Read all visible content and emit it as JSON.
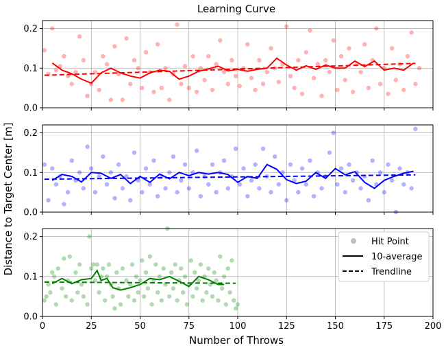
{
  "figure": {
    "title": "Learning Curve",
    "xlabel": "Number of Throws",
    "ylabel": "Distance to Target Center [m]"
  },
  "legend": {
    "placement": "top-right of bottom panel",
    "entries": [
      {
        "label": "Hit Point",
        "kind": "point"
      },
      {
        "label": "10-average",
        "kind": "solid"
      },
      {
        "label": "Trendline",
        "kind": "dashed"
      }
    ]
  },
  "chart_data": [
    {
      "type": "scatter",
      "panel": "top",
      "color": "#ff0000",
      "xlim": [
        0,
        200
      ],
      "ylim": [
        0,
        0.22
      ],
      "xticks": [
        0,
        25,
        50,
        75,
        100,
        125,
        150,
        175,
        200
      ],
      "yticks": [
        0.0,
        0.1,
        0.2
      ],
      "grid": true,
      "series": [
        {
          "role": "hit_points",
          "x": [
            1,
            3,
            5,
            7,
            9,
            11,
            13,
            15,
            17,
            19,
            21,
            23,
            25,
            27,
            29,
            31,
            33,
            35,
            37,
            39,
            41,
            43,
            45,
            47,
            49,
            51,
            53,
            55,
            57,
            59,
            61,
            63,
            65,
            67,
            69,
            71,
            73,
            75,
            77,
            79,
            81,
            83,
            85,
            87,
            89,
            91,
            93,
            95,
            97,
            99,
            101,
            103,
            105,
            107,
            109,
            111,
            113,
            115,
            117,
            119,
            121,
            123,
            125,
            127,
            129,
            131,
            133,
            135,
            137,
            139,
            141,
            143,
            145,
            147,
            149,
            151,
            153,
            155,
            157,
            159,
            161,
            163,
            165,
            167,
            169,
            171,
            173,
            175,
            177,
            179,
            181,
            183,
            185,
            187,
            189,
            191,
            193
          ],
          "y": [
            0.145,
            0.085,
            0.2,
            0.095,
            0.105,
            0.13,
            0.08,
            0.06,
            0.09,
            0.18,
            0.12,
            0.03,
            0.06,
            0.09,
            0.045,
            0.13,
            0.11,
            0.02,
            0.155,
            0.085,
            0.02,
            0.175,
            0.06,
            0.12,
            0.1,
            0.05,
            0.14,
            0.09,
            0.04,
            0.16,
            0.05,
            0.1,
            0.02,
            0.085,
            0.21,
            0.06,
            0.105,
            0.05,
            0.13,
            0.04,
            0.1,
            0.07,
            0.13,
            0.045,
            0.11,
            0.17,
            0.09,
            0.06,
            0.12,
            0.08,
            0.055,
            0.1,
            0.16,
            0.075,
            0.045,
            0.12,
            0.06,
            0.09,
            0.15,
            0.1,
            0.065,
            0.11,
            0.205,
            0.08,
            0.05,
            0.12,
            0.035,
            0.14,
            0.195,
            0.075,
            0.11,
            0.03,
            0.12,
            0.09,
            0.17,
            0.045,
            0.13,
            0.07,
            0.15,
            0.04,
            0.11,
            0.09,
            0.16,
            0.05,
            0.12,
            0.2,
            0.06,
            0.1,
            0.035,
            0.15,
            0.07,
            0.11,
            0.045,
            0.13,
            0.19,
            0.06,
            0.1
          ]
        },
        {
          "role": "10_average",
          "x": [
            5,
            10,
            15,
            20,
            25,
            30,
            35,
            40,
            45,
            50,
            55,
            60,
            65,
            70,
            75,
            80,
            85,
            90,
            95,
            100,
            105,
            110,
            115,
            120,
            125,
            130,
            135,
            140,
            145,
            150,
            155,
            160,
            165,
            170,
            175,
            180,
            185,
            190
          ],
          "y": [
            0.113,
            0.095,
            0.086,
            0.072,
            0.062,
            0.088,
            0.1,
            0.088,
            0.08,
            0.075,
            0.088,
            0.095,
            0.092,
            0.072,
            0.08,
            0.092,
            0.098,
            0.105,
            0.093,
            0.097,
            0.092,
            0.097,
            0.1,
            0.125,
            0.108,
            0.095,
            0.106,
            0.097,
            0.108,
            0.1,
            0.1,
            0.118,
            0.104,
            0.118,
            0.095,
            0.1,
            0.095,
            0.113
          ]
        },
        {
          "role": "trendline",
          "x": [
            1,
            191
          ],
          "y": [
            0.082,
            0.112
          ]
        }
      ]
    },
    {
      "type": "scatter",
      "panel": "middle",
      "color": "#0000ff",
      "xlim": [
        0,
        200
      ],
      "ylim": [
        0,
        0.22
      ],
      "xticks": [
        0,
        25,
        50,
        75,
        100,
        125,
        150,
        175,
        200
      ],
      "yticks": [
        0.0,
        0.1,
        0.2
      ],
      "grid": true,
      "series": [
        {
          "role": "hit_points",
          "x": [
            1,
            3,
            5,
            7,
            9,
            11,
            13,
            15,
            17,
            19,
            21,
            23,
            25,
            27,
            29,
            31,
            33,
            35,
            37,
            39,
            41,
            43,
            45,
            47,
            49,
            51,
            53,
            55,
            57,
            59,
            61,
            63,
            65,
            67,
            69,
            71,
            73,
            75,
            77,
            79,
            81,
            83,
            85,
            87,
            89,
            91,
            93,
            95,
            97,
            99,
            101,
            103,
            105,
            107,
            109,
            111,
            113,
            115,
            117,
            119,
            121,
            123,
            125,
            127,
            129,
            131,
            133,
            135,
            137,
            139,
            141,
            143,
            145,
            147,
            149,
            151,
            153,
            155,
            157,
            159,
            161,
            163,
            165,
            167,
            169,
            171,
            173,
            175,
            177,
            179,
            181,
            183,
            185,
            187,
            189,
            191
          ],
          "y": [
            0.12,
            0.03,
            0.11,
            0.07,
            0.09,
            0.02,
            0.05,
            0.13,
            0.08,
            0.1,
            0.06,
            0.165,
            0.11,
            0.05,
            0.09,
            0.14,
            0.07,
            0.1,
            0.035,
            0.12,
            0.06,
            0.09,
            0.03,
            0.15,
            0.08,
            0.05,
            0.11,
            0.07,
            0.13,
            0.04,
            0.09,
            0.06,
            0.1,
            0.14,
            0.05,
            0.08,
            0.12,
            0.06,
            0.1,
            0.155,
            0.04,
            0.09,
            0.07,
            0.12,
            0.05,
            0.1,
            0.13,
            0.06,
            0.09,
            0.16,
            0.07,
            0.11,
            0.04,
            0.08,
            0.12,
            0.06,
            0.16,
            0.09,
            0.05,
            0.14,
            0.07,
            0.1,
            0.03,
            0.12,
            0.08,
            0.05,
            0.11,
            0.07,
            0.13,
            0.04,
            0.1,
            0.06,
            0.09,
            0.15,
            0.2,
            0.07,
            0.11,
            0.05,
            0.12,
            0.08,
            0.1,
            0.06,
            0.09,
            0.03,
            0.13,
            0.07,
            0.1,
            0.05,
            0.12,
            0.08,
            0.0,
            0.11,
            0.07,
            0.1,
            0.06,
            0.21
          ]
        },
        {
          "role": "10_average",
          "x": [
            5,
            10,
            15,
            20,
            25,
            30,
            35,
            40,
            45,
            50,
            55,
            60,
            65,
            70,
            75,
            80,
            85,
            90,
            95,
            100,
            105,
            110,
            115,
            120,
            125,
            130,
            135,
            140,
            145,
            150,
            155,
            160,
            165,
            170,
            175,
            180,
            185,
            190
          ],
          "y": [
            0.08,
            0.095,
            0.09,
            0.076,
            0.1,
            0.098,
            0.085,
            0.095,
            0.072,
            0.09,
            0.075,
            0.096,
            0.084,
            0.1,
            0.092,
            0.1,
            0.096,
            0.1,
            0.095,
            0.075,
            0.09,
            0.085,
            0.12,
            0.108,
            0.082,
            0.072,
            0.078,
            0.1,
            0.085,
            0.11,
            0.094,
            0.102,
            0.075,
            0.06,
            0.08,
            0.09,
            0.098,
            0.103
          ]
        },
        {
          "role": "trendline",
          "x": [
            1,
            191
          ],
          "y": [
            0.083,
            0.094
          ]
        }
      ]
    },
    {
      "type": "scatter",
      "panel": "bottom",
      "color": "#008000",
      "xlim": [
        0,
        200
      ],
      "ylim": [
        0,
        0.22
      ],
      "xticks": [
        0,
        25,
        50,
        75,
        100,
        125,
        150,
        175,
        200
      ],
      "xticklabels": [
        "0",
        "25",
        "50",
        "75",
        "100",
        "125",
        "150",
        "175",
        "200"
      ],
      "yticks": [
        0.0,
        0.1,
        0.2
      ],
      "grid": true,
      "series": [
        {
          "role": "hit_points",
          "x": [
            1,
            2,
            3,
            4,
            5,
            6,
            7,
            8,
            10,
            11,
            12,
            13,
            14,
            15,
            17,
            18,
            19,
            20,
            21,
            23,
            24,
            25,
            26,
            27,
            28,
            29,
            30,
            31,
            32,
            33,
            34,
            35,
            36,
            37,
            38,
            39,
            40,
            41,
            43,
            44,
            45,
            46,
            47,
            48,
            49,
            50,
            51,
            52,
            53,
            54,
            55,
            56,
            57,
            58,
            59,
            60,
            61,
            62,
            63,
            64,
            65,
            66,
            67,
            68,
            69,
            70,
            71,
            72,
            73,
            74,
            75,
            76,
            77,
            78,
            79,
            80,
            81,
            82,
            83,
            84,
            85,
            86,
            87,
            88,
            89,
            90,
            91,
            92,
            93,
            94,
            95,
            96,
            97,
            98,
            99,
            100
          ],
          "y": [
            0.04,
            0.05,
            0.08,
            0.06,
            0.11,
            0.1,
            0.03,
            0.12,
            0.07,
            0.145,
            0.05,
            0.09,
            0.15,
            0.04,
            0.11,
            0.06,
            0.13,
            0.08,
            0.05,
            0.03,
            0.2,
            0.12,
            0.13,
            0.09,
            0.13,
            0.06,
            0.1,
            0.12,
            0.04,
            0.1,
            0.13,
            0.08,
            0.05,
            0.02,
            0.11,
            0.07,
            0.03,
            0.12,
            0.09,
            0.05,
            0.08,
            0.13,
            0.04,
            0.1,
            0.06,
            0.09,
            0.14,
            0.05,
            0.11,
            0.07,
            0.15,
            0.03,
            0.09,
            0.13,
            0.06,
            0.1,
            0.04,
            0.12,
            0.08,
            0.22,
            0.05,
            0.11,
            0.07,
            0.13,
            0.04,
            0.09,
            0.12,
            0.06,
            0.1,
            0.03,
            0.08,
            0.14,
            0.05,
            0.11,
            0.07,
            0.09,
            0.13,
            0.04,
            0.1,
            0.06,
            0.12,
            0.08,
            0.05,
            0.11,
            0.09,
            0.04,
            0.15,
            0.07,
            0.1,
            0.03,
            0.12,
            0.06,
            0.14,
            0.04,
            0.02,
            0.03
          ]
        },
        {
          "role": "10_average",
          "x": [
            5,
            10,
            15,
            20,
            25,
            28,
            30,
            33,
            36,
            40,
            45,
            50,
            55,
            60,
            65,
            70,
            75,
            80,
            85,
            90,
            93
          ],
          "y": [
            0.082,
            0.095,
            0.082,
            0.092,
            0.095,
            0.115,
            0.09,
            0.095,
            0.072,
            0.066,
            0.072,
            0.08,
            0.095,
            0.092,
            0.1,
            0.088,
            0.075,
            0.1,
            0.092,
            0.08,
            0.08
          ]
        },
        {
          "role": "trendline",
          "x": [
            1,
            99
          ],
          "y": [
            0.086,
            0.083
          ]
        }
      ]
    }
  ]
}
